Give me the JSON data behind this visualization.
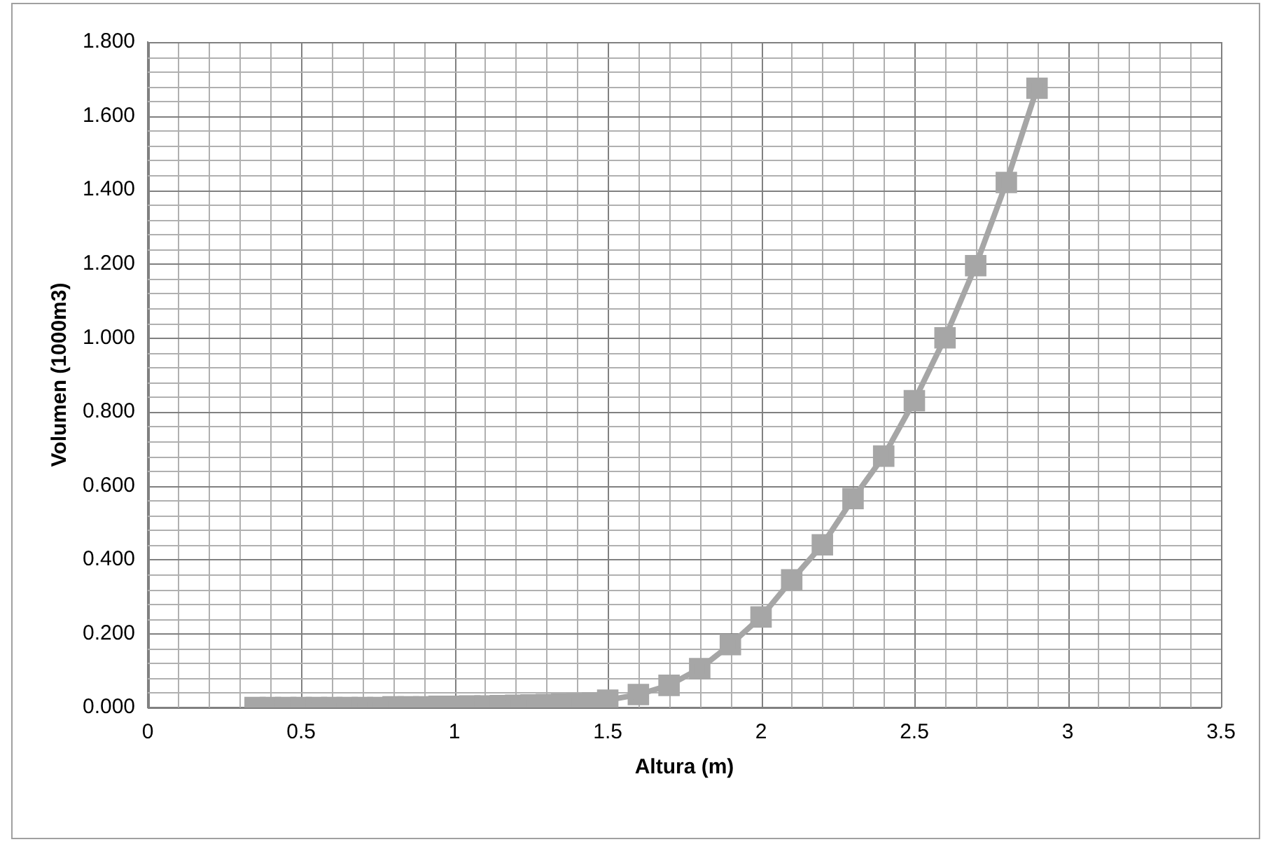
{
  "chart_data": {
    "type": "line",
    "xlabel": "Altura (m)",
    "ylabel": "Volumen (1000m3)",
    "xlim": [
      0,
      3.5
    ],
    "ylim": [
      0,
      1.8
    ],
    "xticks": [
      0,
      0.5,
      1,
      1.5,
      2,
      2.5,
      3,
      3.5
    ],
    "yticks": [
      {
        "value": 0,
        "label": "0.000"
      },
      {
        "value": 0.2,
        "label": "0.200"
      },
      {
        "value": 0.4,
        "label": "0.400"
      },
      {
        "value": 0.6,
        "label": "0.600"
      },
      {
        "value": 0.8,
        "label": "0.800"
      },
      {
        "value": 1,
        "label": "1.000"
      },
      {
        "value": 1.2,
        "label": "1.200"
      },
      {
        "value": 1.4,
        "label": "1.400"
      },
      {
        "value": 1.6,
        "label": "1.600"
      },
      {
        "value": 1.8,
        "label": "1.800"
      }
    ],
    "grid": true,
    "marker": "square",
    "line_style": "solid",
    "legend": false,
    "series": [
      {
        "color": "#a6a6a6",
        "x": [
          0.35,
          0.4,
          0.45,
          0.5,
          0.55,
          0.6,
          0.65,
          0.7,
          0.75,
          0.8,
          0.85,
          0.9,
          0.95,
          1,
          1.05,
          1.1,
          1.15,
          1.2,
          1.25,
          1.3,
          1.35,
          1.4,
          1.45,
          1.5,
          1.6,
          1.7,
          1.8,
          1.9,
          2,
          2.1,
          2.2,
          2.3,
          2.4,
          2.5,
          2.6,
          2.7,
          2.8,
          2.9
        ],
        "values": [
          0,
          0,
          0,
          0,
          0,
          0,
          0,
          0,
          0,
          0.002,
          0.002,
          0.002,
          0.003,
          0.003,
          0.004,
          0.004,
          0.005,
          0.006,
          0.007,
          0.008,
          0.009,
          0.01,
          0.012,
          0.02,
          0.035,
          0.06,
          0.105,
          0.17,
          0.245,
          0.345,
          0.44,
          0.565,
          0.68,
          0.83,
          1.0,
          1.195,
          1.42,
          1.675
        ]
      }
    ]
  }
}
